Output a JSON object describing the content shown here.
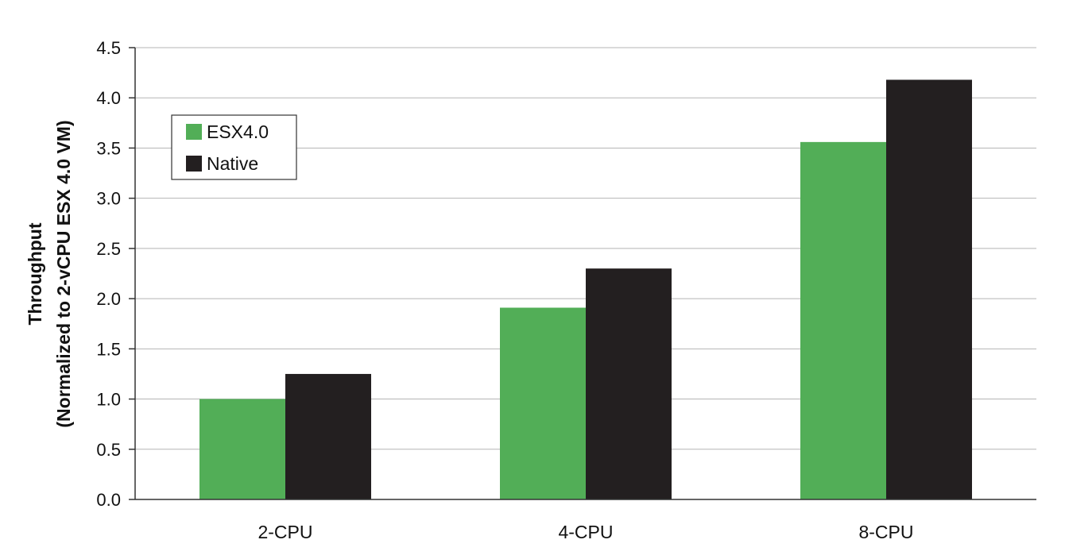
{
  "chart_data": {
    "type": "bar",
    "title": "",
    "xlabel": "",
    "ylabel": [
      "Throughput",
      "(Normalized to 2-vCPU ESX 4.0 VM)"
    ],
    "categories": [
      "2-CPU",
      "4-CPU",
      "8-CPU"
    ],
    "series": [
      {
        "name": "ESX4.0",
        "color": "#52ae57",
        "values": [
          1.0,
          1.91,
          3.56
        ]
      },
      {
        "name": "Native",
        "color": "#231f20",
        "values": [
          1.25,
          2.3,
          4.18
        ]
      }
    ],
    "ylim": [
      0,
      4.5
    ],
    "yticks": [
      "0.0",
      "0.5",
      "1.0",
      "1.5",
      "2.0",
      "2.5",
      "3.0",
      "3.5",
      "4.0",
      "4.5"
    ],
    "grid": true,
    "legend_position": "top-left"
  }
}
